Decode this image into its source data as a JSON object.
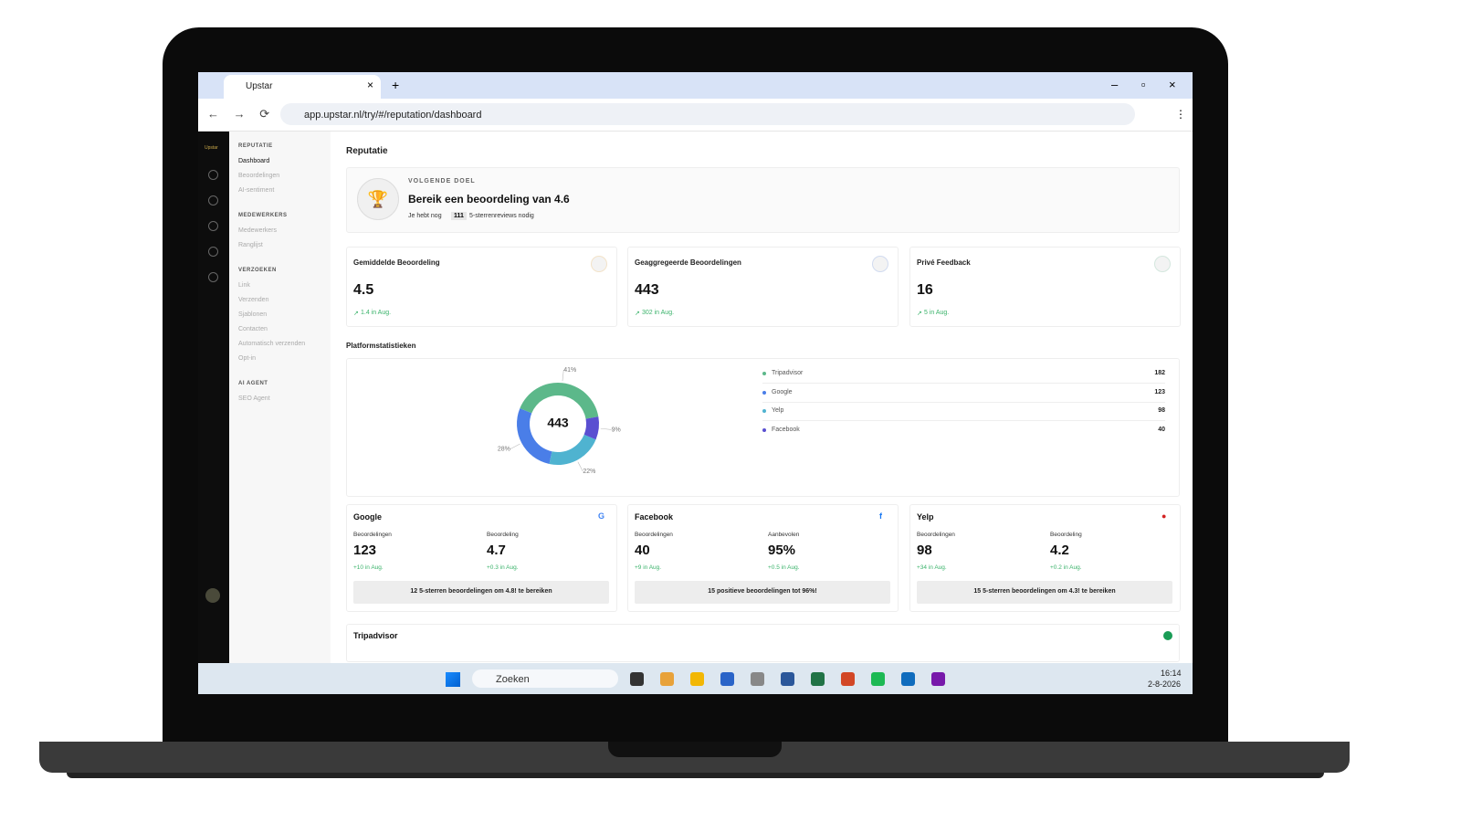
{
  "browser": {
    "tab_title": "Upstar",
    "url": "app.upstar.nl/try/#/reputation/dashboard"
  },
  "sidebar": {
    "logo": "Upstar",
    "sections": [
      {
        "heading": "REPUTATIE",
        "items": [
          "Dashboard",
          "Beoordelingen",
          "AI-sentiment"
        ]
      },
      {
        "heading": "MEDEWERKERS",
        "items": [
          "Medewerkers",
          "Ranglijst"
        ]
      },
      {
        "heading": "VERZOEKEN",
        "items": [
          "Link",
          "Verzenden",
          "Sjablonen",
          "Contacten",
          "Automatisch verzenden",
          "Opt-in"
        ]
      },
      {
        "heading": "AI AGENT",
        "items": [
          "SEO Agent"
        ]
      }
    ]
  },
  "page": {
    "title": "Reputatie",
    "goal": {
      "label": "VOLGENDE DOEL",
      "title": "Bereik een beoordeling van 4.6",
      "text_before": "Je hebt nog",
      "count": 111,
      "text_after": "5-sterrenreviews nodig"
    },
    "kpis": [
      {
        "title": "Gemiddelde Beoordeling",
        "value": 4.5,
        "change": "1.4 in Aug."
      },
      {
        "title": "Geaggregeerde Beoordelingen",
        "value": 443,
        "change": "302 in Aug."
      },
      {
        "title": "Privé Feedback",
        "value": 16,
        "change": "5 in Aug."
      }
    ],
    "platform_title": "Platformstatistieken",
    "platforms": [
      {
        "name": "Google",
        "metrics": [
          {
            "label": "Beoordelingen",
            "value": 123,
            "change": "+10 in Aug."
          },
          {
            "label": "Beoordeling",
            "value": 4.7,
            "change": "+0.3 in Aug."
          }
        ],
        "footer": "12 5-sterren beoordelingen om 4.8! te bereiken"
      },
      {
        "name": "Facebook",
        "metrics": [
          {
            "label": "Beoordelingen",
            "value": 40,
            "change": "+9 in Aug."
          },
          {
            "label": "Aanbevolen",
            "value": "95%",
            "change": "+0.5 in Aug."
          }
        ],
        "footer": "15 positieve beoordelingen tot 96%!"
      },
      {
        "name": "Yelp",
        "metrics": [
          {
            "label": "Beoordelingen",
            "value": 98,
            "change": "+34 in Aug."
          },
          {
            "label": "Beoordeling",
            "value": 4.2,
            "change": "+0.2 in Aug."
          }
        ],
        "footer": "15 5-sterren beoordelingen om 4.3! te bereiken"
      }
    ],
    "next_platform": "Tripadvisor"
  },
  "chart_data": {
    "type": "pie",
    "center_label": 443,
    "categories": [
      "Tripadvisor",
      "Google",
      "Yelp",
      "Facebook"
    ],
    "values": [
      182,
      123,
      98,
      40
    ],
    "percent_labels": [
      "41%",
      "28%",
      "22%",
      "9%"
    ],
    "colors": [
      "#5cb88a",
      "#4a7ee8",
      "#4fb3d0",
      "#5a4fd1"
    ]
  },
  "taskbar": {
    "search": "Zoeken",
    "time": "16:14",
    "date": "2-8-2026"
  }
}
